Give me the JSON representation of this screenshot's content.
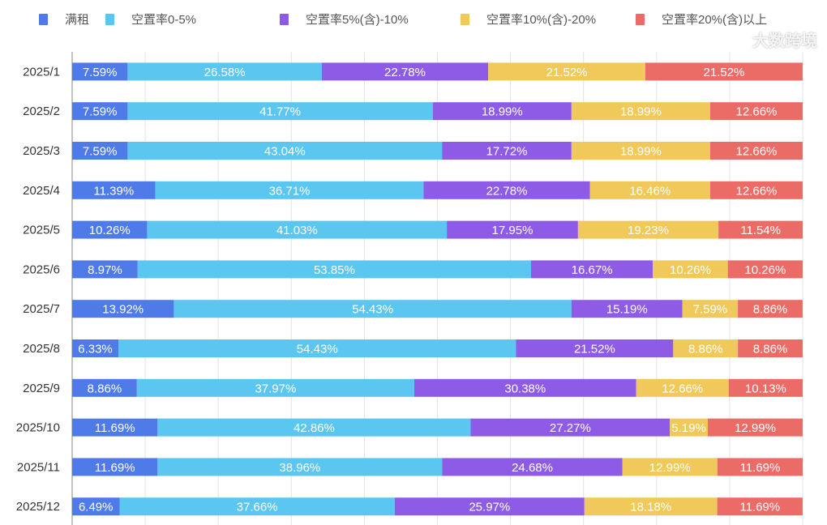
{
  "chart_data": {
    "type": "bar",
    "orientation": "horizontal",
    "stacked": true,
    "categories": [
      "2025/1",
      "2025/2",
      "2025/3",
      "2025/4",
      "2025/5",
      "2025/6",
      "2025/7",
      "2025/8",
      "2025/9",
      "2025/10",
      "2025/11",
      "2025/12"
    ],
    "series": [
      {
        "name": "满租",
        "color": "#4f7be8",
        "values": [
          7.59,
          7.59,
          7.59,
          11.39,
          10.26,
          8.97,
          13.92,
          6.33,
          8.86,
          11.69,
          11.69,
          6.49
        ]
      },
      {
        "name": "空置率0-5%",
        "color": "#5bc6ef",
        "values": [
          26.58,
          41.77,
          43.04,
          36.71,
          41.03,
          53.85,
          54.43,
          54.43,
          37.97,
          42.86,
          38.96,
          37.66
        ]
      },
      {
        "name": "空置率5%(含)-10%",
        "color": "#8e5be6",
        "values": [
          22.78,
          18.99,
          17.72,
          22.78,
          17.95,
          16.67,
          15.19,
          21.52,
          30.38,
          27.27,
          24.68,
          25.97
        ]
      },
      {
        "name": "空置率10%(含)-20%",
        "color": "#f0c95a",
        "values": [
          21.52,
          18.99,
          18.99,
          16.46,
          19.23,
          10.26,
          7.59,
          8.86,
          12.66,
          5.19,
          12.99,
          18.18
        ]
      },
      {
        "name": "空置率20%(含)以上",
        "color": "#eb6b66",
        "values": [
          21.52,
          12.66,
          12.66,
          12.66,
          11.54,
          10.26,
          8.86,
          8.86,
          10.13,
          12.99,
          11.69,
          11.69
        ]
      }
    ],
    "xlim": [
      0,
      100
    ],
    "grid": true,
    "legend": "top",
    "data_labels": true,
    "label_suffix": "%"
  },
  "watermark": "大数跨境"
}
